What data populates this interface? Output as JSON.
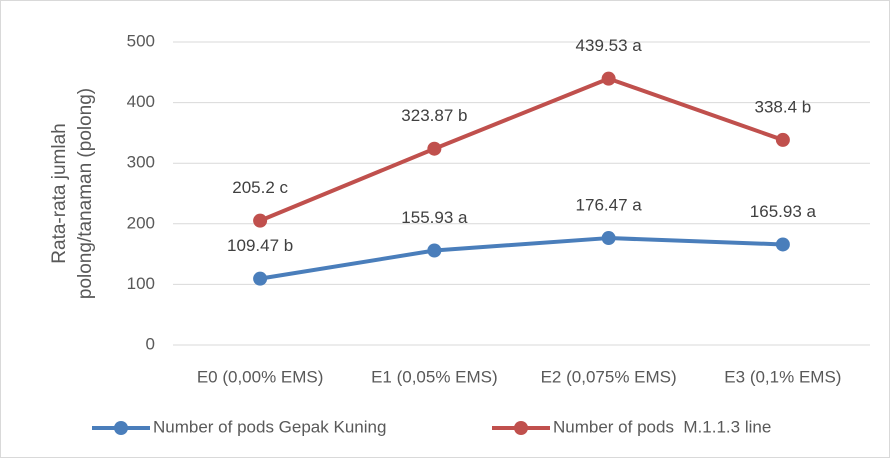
{
  "chart_data": {
    "type": "line",
    "y_label": [
      "Rata-rata jumlah",
      "polong/tanaman (polong)"
    ],
    "categories": [
      "E0 (0,00% EMS)",
      "E1 (0,05% EMS)",
      "E2 (0,075% EMS)",
      "E3 (0,1% EMS)"
    ],
    "series": [
      {
        "name": "Number of pods Gepak Kuning",
        "color": "#4a7ebb",
        "values": [
          109.47,
          155.93,
          176.47,
          165.93
        ],
        "value_labels": [
          "109.47 b",
          "155.93 a",
          "176.47 a",
          "165.93 a"
        ]
      },
      {
        "name": "Number of pods  M.1.1.3 line",
        "color": "#c0504d",
        "values": [
          205.2,
          323.87,
          439.53,
          338.4
        ],
        "value_labels": [
          "205.2 c",
          "323.87 b",
          "439.53 a",
          "338.4 b"
        ]
      }
    ],
    "ylim": [
      0,
      500
    ],
    "yticks": [
      0,
      100,
      200,
      300,
      400,
      500
    ],
    "grid": true,
    "legend": "bottom"
  }
}
